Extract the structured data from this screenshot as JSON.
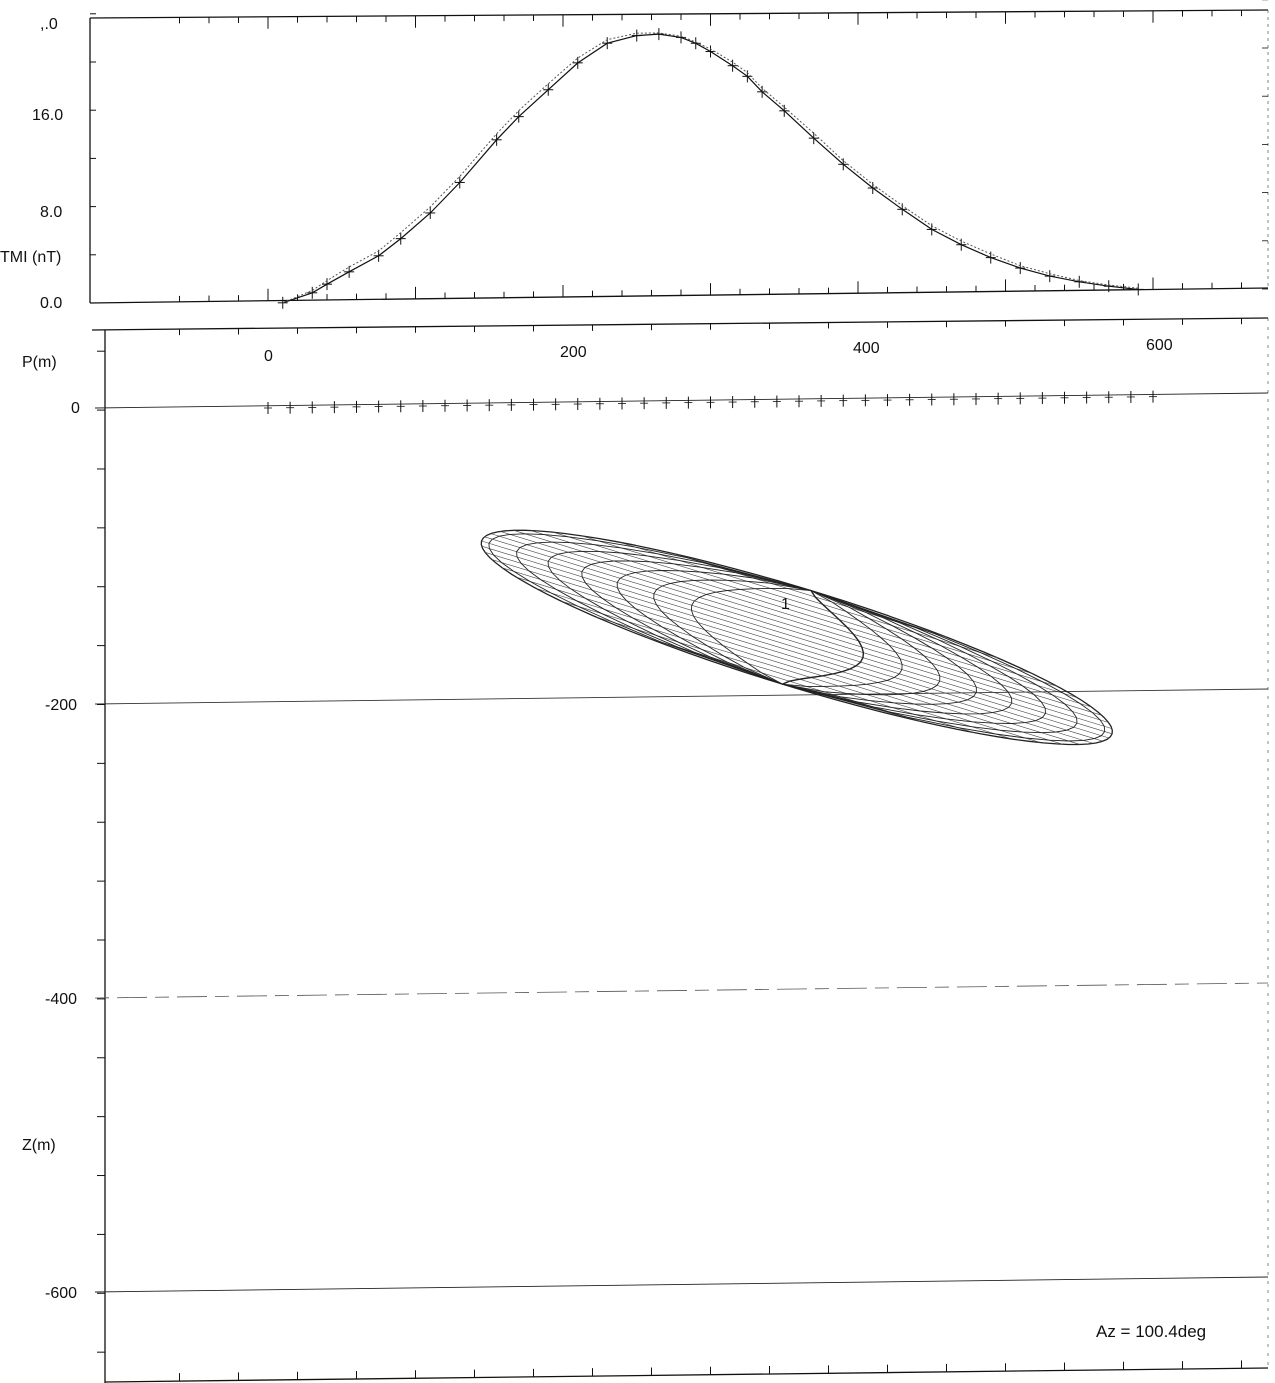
{
  "colors": {
    "ink": "#111111",
    "observed": "#111111",
    "calculated": "#555555",
    "grid": "#777777",
    "body_mesh": "#222222"
  },
  "chart_data": [
    {
      "type": "line",
      "ylabel": "TMI (nT)",
      "xlim": [
        -60,
        670
      ],
      "ylim": [
        0,
        25
      ],
      "yticks": [
        0.0,
        8.0,
        16.0
      ],
      "ytick_labels": [
        "0.0",
        "8.0",
        "16.0"
      ],
      "top_label_fragment": ",.0",
      "grid": false,
      "series": [
        {
          "style": "solid-with-crosses",
          "x": [
            10,
            30,
            40,
            55,
            75,
            90,
            110,
            130,
            155,
            170,
            190,
            210,
            230,
            250,
            265,
            280,
            290,
            300,
            315,
            325,
            335,
            350,
            370,
            390,
            410,
            430,
            450,
            470,
            490,
            510,
            530,
            550,
            570,
            590
          ],
          "y": [
            0.0,
            0.8,
            1.5,
            2.5,
            3.8,
            5.2,
            7.3,
            9.8,
            13.3,
            15.2,
            17.4,
            19.6,
            21.2,
            21.8,
            21.9,
            21.6,
            21.1,
            20.4,
            19.2,
            18.3,
            17.0,
            15.4,
            13.1,
            10.9,
            8.9,
            7.1,
            5.4,
            4.1,
            3.0,
            2.1,
            1.4,
            0.9,
            0.5,
            0.2
          ]
        },
        {
          "style": "dotted",
          "x": [
            10,
            30,
            40,
            55,
            75,
            90,
            110,
            130,
            155,
            170,
            190,
            210,
            230,
            250,
            265,
            280,
            290,
            300,
            315,
            325,
            335,
            350,
            370,
            390,
            410,
            430,
            450,
            470,
            490,
            510,
            530,
            550,
            570,
            590
          ],
          "y": [
            0.0,
            1.0,
            1.8,
            2.9,
            4.2,
            5.7,
            7.8,
            10.3,
            13.8,
            15.7,
            17.9,
            20.0,
            21.5,
            22.0,
            22.0,
            21.7,
            21.2,
            20.6,
            19.5,
            18.6,
            17.3,
            15.7,
            13.5,
            11.2,
            9.2,
            7.4,
            5.7,
            4.4,
            3.3,
            2.3,
            1.6,
            1.0,
            0.6,
            0.3
          ]
        }
      ]
    },
    {
      "type": "scatter",
      "xlabel": "P(m)",
      "ylabel": "Z(m)",
      "xlim": [
        -60,
        670
      ],
      "ylim": [
        -730,
        60
      ],
      "xticks": [
        0,
        200,
        400,
        600
      ],
      "xtick_labels": [
        "0",
        "200",
        "400",
        "600"
      ],
      "yticks": [
        0,
        -200,
        -400,
        -600
      ],
      "ytick_labels": [
        "0",
        "-200",
        "-400",
        "-600"
      ],
      "grid": false,
      "stations": {
        "x": [
          0,
          15,
          30,
          45,
          60,
          75,
          90,
          105,
          120,
          135,
          150,
          165,
          180,
          195,
          210,
          225,
          240,
          255,
          270,
          285,
          300,
          315,
          330,
          345,
          360,
          375,
          390,
          405,
          420,
          435,
          450,
          465,
          480,
          495,
          510,
          525,
          540,
          555,
          570,
          585,
          600
        ],
        "z": 0
      },
      "body": {
        "label": "1",
        "center_x": 328,
        "center_z": -175,
        "length": 300,
        "thickness": 35,
        "dip_deg": -17,
        "dip_direction": "right"
      },
      "annotation": "Az = 100.4deg"
    }
  ]
}
